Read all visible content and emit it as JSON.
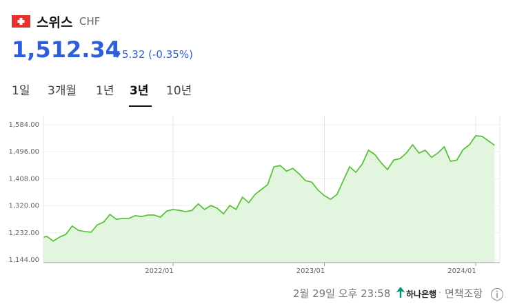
{
  "header": {
    "title": "스위스",
    "currency": "CHF",
    "price": "1,512.34",
    "change": "5.32 (-0.35%)"
  },
  "tabs": {
    "items": [
      "1일",
      "3개월",
      "1년",
      "3년",
      "10년"
    ],
    "selected": 3
  },
  "footer": {
    "timestamp": "2월 29일 오후 23:58",
    "source": "하나은행",
    "disclaimer": "면책조항"
  },
  "chart_data": {
    "type": "area",
    "color": "#5cc13c",
    "fill": "#e2f5de",
    "grid": true,
    "categories": [
      null,
      null,
      null,
      null,
      null,
      null,
      null,
      null,
      null,
      null,
      null,
      null,
      null,
      null,
      null,
      null,
      null,
      null,
      null,
      null,
      null,
      "2022/01",
      null,
      null,
      null,
      null,
      null,
      null,
      null,
      null,
      null,
      null,
      null,
      null,
      null,
      null,
      null,
      null,
      null,
      null,
      null,
      null,
      null,
      null,
      null,
      "2023/01",
      null,
      null,
      null,
      null,
      null,
      null,
      null,
      null,
      null,
      null,
      null,
      null,
      null,
      null,
      null,
      null,
      null,
      null,
      null,
      null,
      null,
      null,
      null,
      "2024/01",
      null,
      null,
      null
    ],
    "values": [
      1216,
      1220,
      1205,
      1218,
      1227,
      1254,
      1240,
      1236,
      1234,
      1258,
      1267,
      1292,
      1276,
      1279,
      1279,
      1288,
      1285,
      1290,
      1290,
      1283,
      1303,
      1308,
      1305,
      1301,
      1305,
      1326,
      1308,
      1321,
      1312,
      1294,
      1321,
      1308,
      1348,
      1330,
      1357,
      1373,
      1389,
      1447,
      1451,
      1433,
      1442,
      1424,
      1402,
      1397,
      1371,
      1353,
      1341,
      1357,
      1402,
      1447,
      1429,
      1456,
      1501,
      1487,
      1460,
      1438,
      1469,
      1474,
      1492,
      1519,
      1492,
      1501,
      1478,
      1492,
      1512,
      1465,
      1469,
      1503,
      1519,
      1548,
      1546,
      1532,
      1517
    ],
    "ylim": [
      1144,
      1584
    ],
    "yticks": [
      {
        "value": 1144,
        "label": "1,144.00"
      },
      {
        "value": 1232,
        "label": "1,232.00"
      },
      {
        "value": 1320,
        "label": "1,320.00"
      },
      {
        "value": 1408,
        "label": "1,408.00"
      },
      {
        "value": 1496,
        "label": "1,496.00"
      },
      {
        "value": 1584,
        "label": "1,584.00"
      }
    ]
  }
}
